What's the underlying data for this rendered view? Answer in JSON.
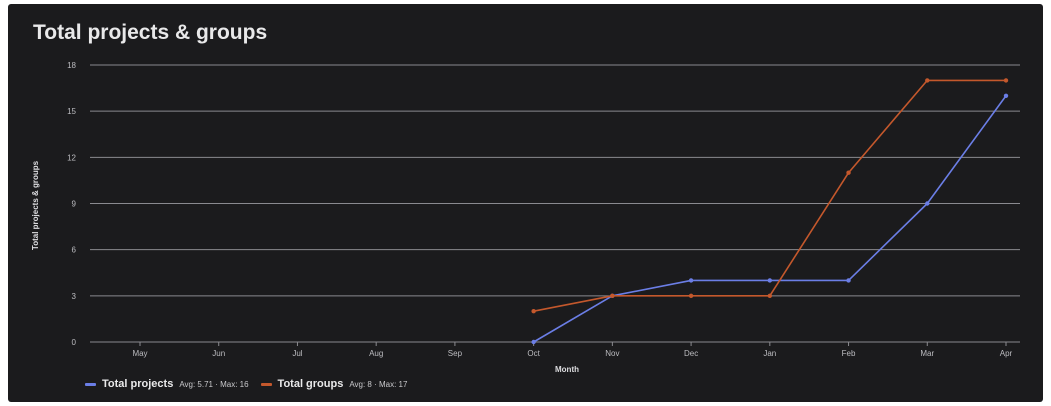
{
  "chart_data": {
    "type": "line",
    "title": "Total projects & groups",
    "xlabel": "Month",
    "ylabel": "Total projects & groups",
    "categories": [
      "May",
      "Jun",
      "Jul",
      "Aug",
      "Sep",
      "Oct",
      "Nov",
      "Dec",
      "Jan",
      "Feb",
      "Mar",
      "Apr"
    ],
    "ylim": [
      0,
      18
    ],
    "yticks": [
      0,
      3,
      6,
      9,
      12,
      15,
      18
    ],
    "grid": true,
    "legend_position": "bottom-left",
    "series": [
      {
        "name": "Total projects",
        "color": "#6b7ee6",
        "values": [
          null,
          null,
          null,
          null,
          null,
          0,
          3,
          4,
          4,
          4,
          9,
          16
        ],
        "stats": "Avg: 5.71 · Max: 16"
      },
      {
        "name": "Total groups",
        "color": "#c4582c",
        "values": [
          null,
          null,
          null,
          null,
          null,
          2,
          3,
          3,
          3,
          11,
          17,
          17
        ],
        "stats": "Avg: 8 · Max: 17"
      }
    ]
  },
  "colors": {
    "background": "#1b1b1d",
    "gridline": "#8a8a8f",
    "text": "#e9e9ea"
  }
}
